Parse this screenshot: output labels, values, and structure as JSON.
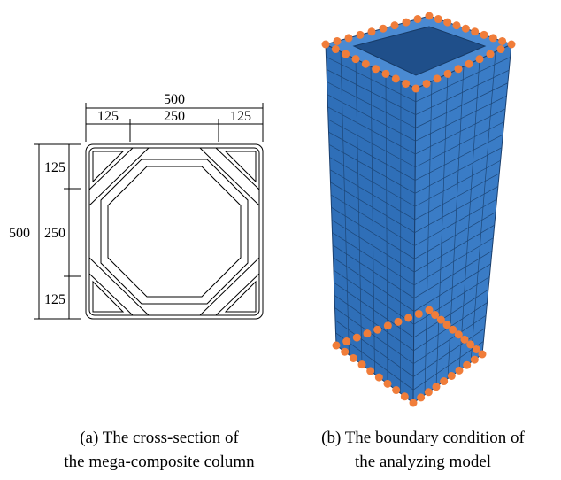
{
  "figure_a": {
    "dimensions": {
      "top_total": "500",
      "top_segments": [
        "125",
        "250",
        "125"
      ],
      "left_total": "500",
      "left_segments": [
        "125",
        "250",
        "125"
      ]
    },
    "caption": [
      "(a) The cross-section of",
      "the mega-composite column"
    ]
  },
  "figure_b": {
    "caption": [
      "(b) The boundary condition of",
      "the analyzing model"
    ]
  }
}
